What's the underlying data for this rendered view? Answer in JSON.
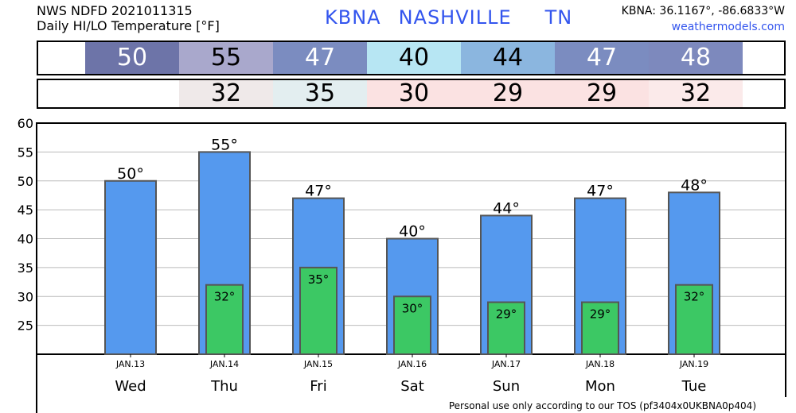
{
  "header": {
    "line1": "NWS NDFD 2021011315",
    "line2": "Daily HI/LO Temperature [°F]",
    "station": "KBNA",
    "city": "NASHVILLE",
    "state": "TN",
    "coords": "KBNA: 36.1167°, -86.6833°W",
    "site": "weathermodels.com"
  },
  "hi_row": [
    {
      "value": "50",
      "bg": "#6d74a8",
      "fg": "#ffffff"
    },
    {
      "value": "55",
      "bg": "#a9a8cc",
      "fg": "#000000"
    },
    {
      "value": "47",
      "bg": "#7b8cc0",
      "fg": "#ffffff"
    },
    {
      "value": "40",
      "bg": "#b7e6f3",
      "fg": "#000000"
    },
    {
      "value": "44",
      "bg": "#8bb6df",
      "fg": "#000000"
    },
    {
      "value": "47",
      "bg": "#7b8cc0",
      "fg": "#ffffff"
    },
    {
      "value": "48",
      "bg": "#7d89bd",
      "fg": "#ffffff"
    }
  ],
  "lo_row": [
    {
      "value": "",
      "bg": "#ffffff"
    },
    {
      "value": "32",
      "bg": "#efe9e9"
    },
    {
      "value": "35",
      "bg": "#e3eef0"
    },
    {
      "value": "30",
      "bg": "#fbe2e2"
    },
    {
      "value": "29",
      "bg": "#fbe2e2"
    },
    {
      "value": "29",
      "bg": "#fbe2e2"
    },
    {
      "value": "32",
      "bg": "#fbeaea"
    }
  ],
  "chart_data": {
    "type": "bar",
    "categories": [
      "JAN.13",
      "JAN.14",
      "JAN.15",
      "JAN.16",
      "JAN.17",
      "JAN.18",
      "JAN.19"
    ],
    "days": [
      "Wed",
      "Thu",
      "Fri",
      "Sat",
      "Sun",
      "Mon",
      "Tue"
    ],
    "series": [
      {
        "values": [
          50,
          55,
          47,
          40,
          44,
          47,
          48
        ],
        "color": "#5599ee"
      },
      {
        "values": [
          null,
          32,
          35,
          30,
          29,
          29,
          32
        ],
        "color": "#3cc864"
      }
    ],
    "data_labels_hi": [
      "50°",
      "55°",
      "47°",
      "40°",
      "44°",
      "47°",
      "48°"
    ],
    "data_labels_lo": [
      "",
      "32°",
      "35°",
      "30°",
      "29°",
      "29°",
      "32°"
    ],
    "yticks": [
      25,
      30,
      35,
      40,
      45,
      50,
      55,
      60
    ],
    "ylim": [
      20,
      60
    ],
    "grid": true
  },
  "footer": "Personal use only according to our TOS (pf3404x0UKBNA0p404)"
}
